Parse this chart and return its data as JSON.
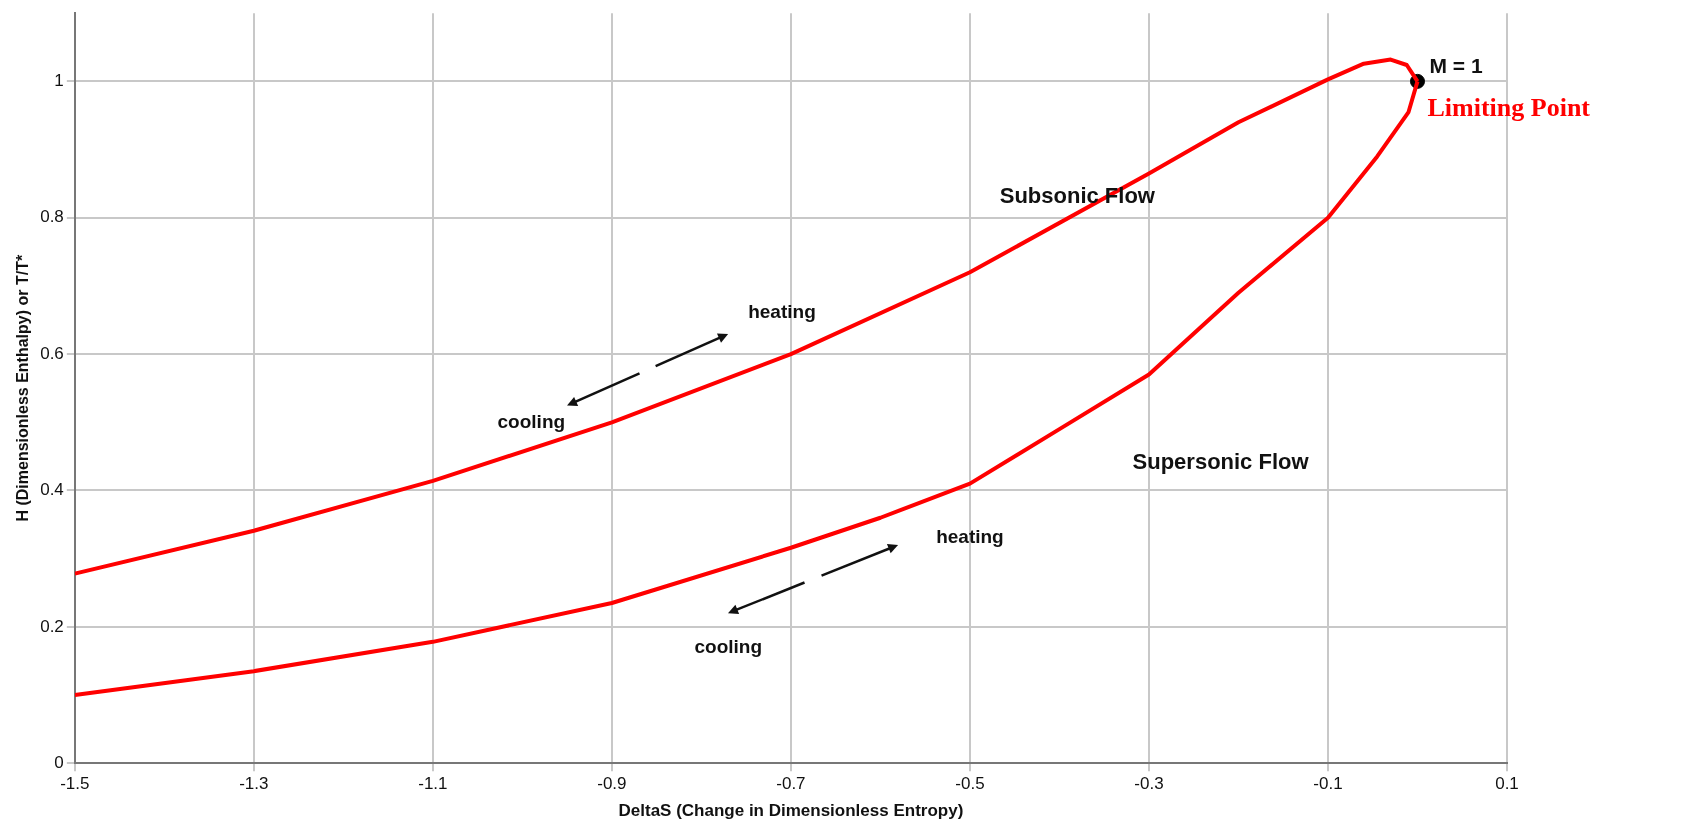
{
  "chart_data": {
    "type": "line",
    "xlabel": "DeltaS (Change in Dimensionless Entropy)",
    "ylabel": "H (Dimensionless Enthalpy) or T/T*",
    "xlim": [
      -1.5,
      0.1
    ],
    "xticks": [
      -1.5,
      -1.3,
      -1.1,
      -0.9,
      -0.7,
      -0.5,
      -0.3,
      -0.1,
      0.1
    ],
    "ylim": [
      0,
      1.1
    ],
    "yticks": [
      0,
      0.2,
      0.4,
      0.6,
      0.8,
      1
    ],
    "grid": true,
    "legend": false,
    "marker": "none",
    "line_style": "solid",
    "series": [
      {
        "color": "#ff0000",
        "x": [
          -1.5,
          -1.3,
          -1.1,
          -0.9,
          -0.7,
          -0.5,
          -0.3,
          -0.2,
          -0.1,
          -0.06,
          -0.03,
          -0.012,
          0
        ],
        "values": [
          0.278,
          0.341,
          0.414,
          0.5,
          0.6,
          0.72,
          0.865,
          0.94,
          1.003,
          1.026,
          1.032,
          1.024,
          1
        ]
      },
      {
        "color": "#ff0000",
        "x": [
          0,
          -0.01,
          -0.045,
          -0.1,
          -0.2,
          -0.3,
          -0.4,
          -0.5,
          -0.6,
          -0.7,
          -0.9,
          -1.1,
          -1.3,
          -1.5
        ],
        "values": [
          1,
          0.955,
          0.89,
          0.8,
          0.69,
          0.57,
          0.49,
          0.41,
          0.36,
          0.316,
          0.235,
          0.178,
          0.135,
          0.1
        ]
      },
      {
        "type": "scatter",
        "color": "#000000",
        "marker": "circle",
        "x": [
          0
        ],
        "values": [
          1
        ]
      }
    ],
    "annotations": [
      "Subsonic Flow",
      "Supersonic Flow",
      "heating",
      "cooling",
      "heating",
      "cooling",
      {
        "text": "M = 1",
        "x": 0,
        "y": 1
      },
      {
        "text": "Limiting Point",
        "x": 0,
        "y": 1
      }
    ]
  }
}
